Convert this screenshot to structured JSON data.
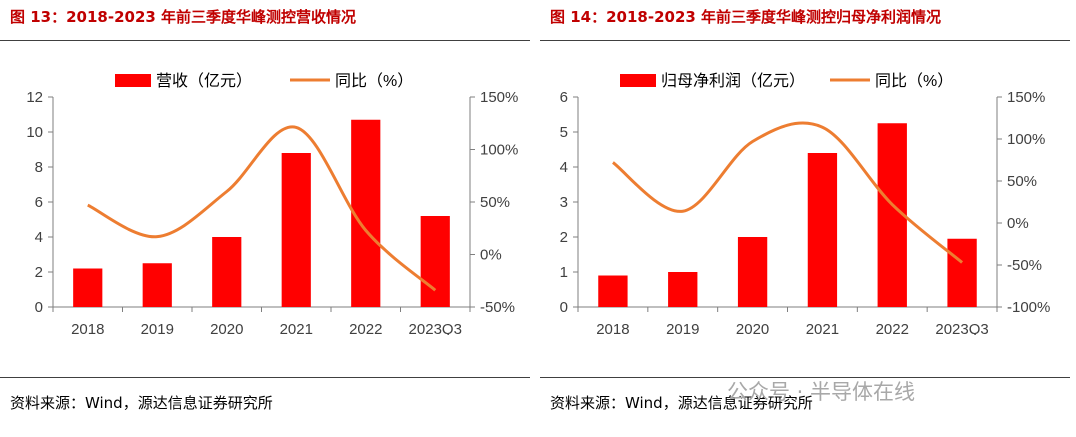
{
  "figures": [
    {
      "title": "图 13：2018-2023 年前三季度华峰测控营收情况",
      "source": "资料来源：Wind，源达信息证券研究所"
    },
    {
      "title": "图 14：2018-2023 年前三季度华峰测控归母净利润情况",
      "source": "资料来源：Wind，源达信息证券研究所"
    }
  ],
  "watermark": "公众号 · 半导体在线",
  "chart_data": [
    {
      "type": "bar",
      "categories": [
        "2018",
        "2019",
        "2020",
        "2021",
        "2022",
        "2023Q3"
      ],
      "series": [
        {
          "name": "营收（亿元）",
          "type": "bar",
          "axis": "left",
          "color": "#ff0000",
          "values": [
            2.2,
            2.5,
            4.0,
            8.8,
            10.7,
            5.2
          ]
        },
        {
          "name": "同比（%）",
          "type": "line",
          "axis": "right",
          "color": "#ed7d31",
          "values": [
            47,
            17,
            60,
            121,
            23,
            -34
          ]
        }
      ],
      "ylim": [
        0,
        12
      ],
      "yticks": [
        "0",
        "2",
        "4",
        "6",
        "8",
        "10",
        "12"
      ],
      "y2lim": [
        -50,
        150
      ],
      "y2ticks": [
        "-50%",
        "0%",
        "50%",
        "100%",
        "150%"
      ],
      "legend_position": "top",
      "grid": false
    },
    {
      "type": "bar",
      "categories": [
        "2018",
        "2019",
        "2020",
        "2021",
        "2022",
        "2023Q3"
      ],
      "series": [
        {
          "name": "归母净利润（亿元）",
          "type": "bar",
          "axis": "left",
          "color": "#ff0000",
          "values": [
            0.9,
            1.0,
            2.0,
            4.4,
            5.25,
            1.95
          ]
        },
        {
          "name": "同比（%）",
          "type": "line",
          "axis": "right",
          "color": "#ed7d31",
          "values": [
            72,
            14,
            97,
            114,
            22,
            -47
          ]
        }
      ],
      "ylim": [
        0,
        6
      ],
      "yticks": [
        "0",
        "1",
        "2",
        "3",
        "4",
        "5",
        "6"
      ],
      "y2lim": [
        -100,
        150
      ],
      "y2ticks": [
        "-100%",
        "-50%",
        "0%",
        "50%",
        "100%",
        "150%"
      ],
      "legend_position": "top",
      "grid": false
    }
  ]
}
